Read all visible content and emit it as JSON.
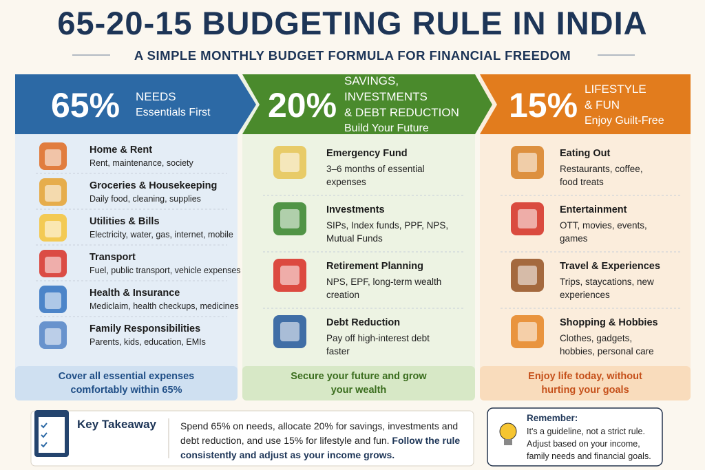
{
  "header": {
    "title": "65-20-15 BUDGETING RULE IN INDIA",
    "subtitle": "A SIMPLE MONTHLY BUDGET FORMULA FOR FINANCIAL FREEDOM"
  },
  "columns": [
    {
      "percent": "65%",
      "heading": [
        "NEEDS",
        "Essentials First"
      ],
      "items": [
        {
          "title": "Home & Rent",
          "desc": "Rent, maintenance, society"
        },
        {
          "title": "Groceries & Housekeeping",
          "desc": "Daily food, cleaning, supplies"
        },
        {
          "title": "Utilities & Bills",
          "desc": "Electricity, water, gas, internet, mobile"
        },
        {
          "title": "Transport",
          "desc": "Fuel, public transport, vehicle expenses"
        },
        {
          "title": "Health & Insurance",
          "desc": "Mediclaim, health checkups, medicines"
        },
        {
          "title": "Family Responsibilities",
          "desc": "Parents, kids, education, EMIs"
        }
      ],
      "footer": "Cover all essential expenses comfortably within 65%"
    },
    {
      "percent": "20%",
      "heading": [
        "SAVINGS, INVESTMENTS",
        "& DEBT REDUCTION",
        "Build Your Future"
      ],
      "items": [
        {
          "title": "Emergency Fund",
          "desc": "3–6 months of essential expenses"
        },
        {
          "title": "Investments",
          "desc": "SIPs, Index funds, PPF, NPS, Mutual Funds"
        },
        {
          "title": "Retirement Planning",
          "desc": "NPS, EPF, long-term wealth creation"
        },
        {
          "title": "Debt Reduction",
          "desc": "Pay off high-interest debt faster"
        }
      ],
      "footer": "Secure your future and grow your wealth"
    },
    {
      "percent": "15%",
      "heading": [
        "LIFESTYLE",
        "& FUN",
        "Enjoy Guilt-Free"
      ],
      "items": [
        {
          "title": "Eating Out",
          "desc": "Restaurants, coffee, food treats"
        },
        {
          "title": "Entertainment",
          "desc": "OTT, movies, events, games"
        },
        {
          "title": "Travel & Experiences",
          "desc": "Trips, staycations, new experiences"
        },
        {
          "title": "Shopping & Hobbies",
          "desc": "Clothes, gadgets, hobbies, personal care"
        }
      ],
      "footer": "Enjoy life today, without hurting your goals"
    }
  ],
  "takeaway": {
    "title": "Key Takeaway",
    "text": "Spend 65% on needs, allocate 20% for savings, investments and debt reduction, and use 15% for lifestyle and fun.",
    "emphasis": "Follow the rule consistently and adjust as your income grows."
  },
  "remember": {
    "title": "Remember:",
    "text": "It's a guideline, not a strict rule. Adjust based on your income, family needs and financial goals."
  }
}
